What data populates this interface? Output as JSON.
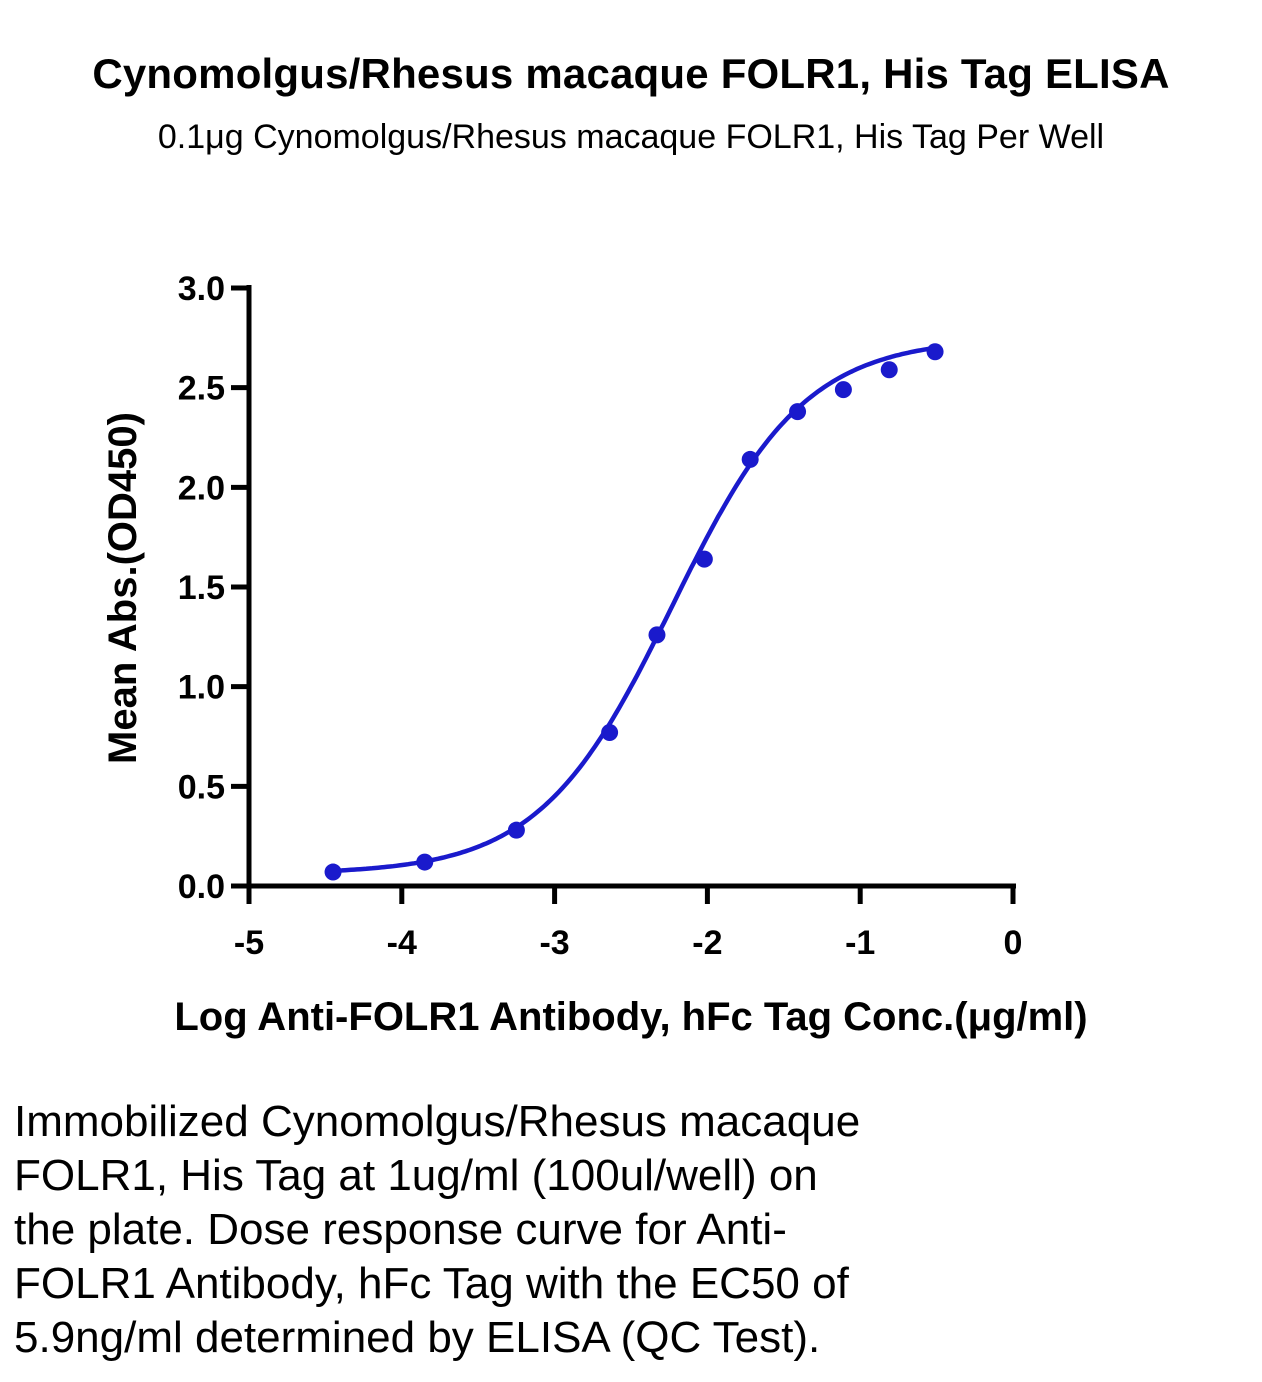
{
  "chart_data": {
    "type": "scatter",
    "title": "Cynomolgus/Rhesus macaque FOLR1, His Tag ELISA",
    "subtitle": "0.1μg Cynomolgus/Rhesus macaque FOLR1, His Tag Per Well",
    "xlabel": "Log Anti-FOLR1 Antibody, hFc Tag Conc.(μg/ml)",
    "ylabel": "Mean Abs.(OD450)",
    "xlim": [
      -5,
      0
    ],
    "ylim": [
      0,
      3.0
    ],
    "xticks": [
      "-5",
      "-4",
      "-3",
      "-2",
      "-1",
      "0"
    ],
    "yticks": [
      "0.0",
      "0.5",
      "1.0",
      "1.5",
      "2.0",
      "2.5",
      "3.0"
    ],
    "grid": false,
    "color": "#1a1acc",
    "series": [
      {
        "x": [
          -4.45,
          -3.85,
          -3.25,
          -2.64,
          -2.33,
          -2.02,
          -1.72,
          -1.41,
          -1.11,
          -0.81,
          -0.51
        ],
        "y": [
          0.07,
          0.12,
          0.28,
          0.77,
          1.26,
          1.64,
          2.14,
          2.38,
          2.49,
          2.59,
          2.68
        ],
        "fit": "4PL",
        "fit_params": {
          "bottom": 0.06,
          "top": 2.75,
          "logEC50": -2.23,
          "hill": 1.0
        }
      }
    ]
  },
  "caption_lines": [
    "Immobilized Cynomolgus/Rhesus macaque",
    "FOLR1, His Tag at 1ug/ml (100ul/well) on",
    "the plate. Dose response curve for Anti-",
    "FOLR1 Antibody, hFc Tag with the EC50 of",
    "5.9ng/ml determined by ELISA (QC Test)."
  ]
}
